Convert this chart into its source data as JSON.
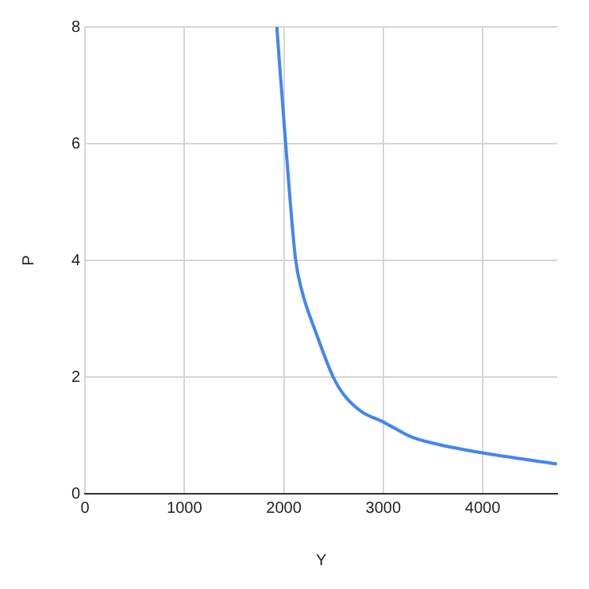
{
  "chart_data": {
    "type": "line",
    "xlabel": "Y",
    "ylabel": "P",
    "series": [
      {
        "color": "#4285f4",
        "x": [
          1929,
          2015,
          2117,
          2178,
          2321,
          2499,
          2601,
          2779,
          3000,
          3288,
          3542,
          4000,
          4748
        ],
        "values": [
          8,
          6.07,
          4.03,
          3.5,
          2.77,
          1.99,
          1.7,
          1.41,
          1.23,
          0.97,
          0.85,
          0.7,
          0.51
        ]
      }
    ],
    "xlim": [
      0,
      4750
    ],
    "xticks": [
      0,
      1000,
      2000,
      3000,
      4000
    ],
    "ylim": [
      0,
      8
    ],
    "yticks": [
      0,
      2,
      4,
      6,
      8
    ],
    "grid": true,
    "legend": false,
    "marker": "none",
    "line_style": "solid"
  }
}
